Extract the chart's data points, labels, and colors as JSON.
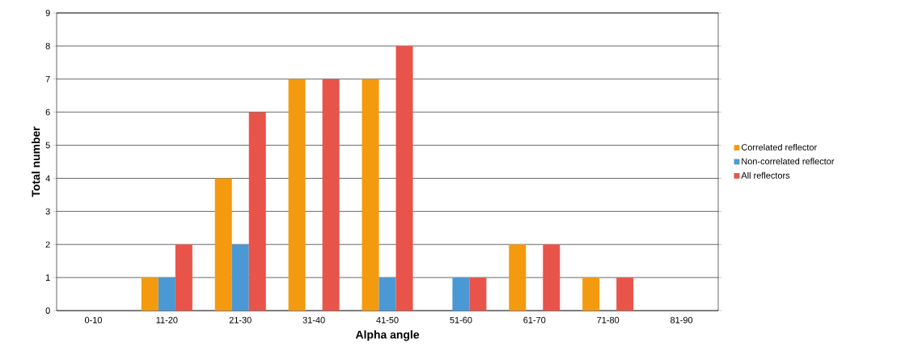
{
  "chart_data": {
    "type": "bar",
    "xlabel": "Alpha angle",
    "ylabel": "Total number",
    "categories": [
      "0-10",
      "11-20",
      "21-30",
      "31-40",
      "41-50",
      "51-60",
      "61-70",
      "71-80",
      "81-90"
    ],
    "series": [
      {
        "name": "Correlated reflector",
        "color": "#f39a0e",
        "values": [
          0,
          1,
          4,
          7,
          7,
          0,
          2,
          1,
          0
        ]
      },
      {
        "name": "Non-correlated reflector",
        "color": "#4a98d4",
        "values": [
          0,
          1,
          2,
          0,
          1,
          1,
          0,
          0,
          0
        ]
      },
      {
        "name": "All reflectors",
        "color": "#e8534a",
        "values": [
          0,
          2,
          6,
          7,
          8,
          1,
          2,
          1,
          0
        ]
      }
    ],
    "ylim": [
      0,
      9
    ],
    "yticks": [
      0,
      1,
      2,
      3,
      4,
      5,
      6,
      7,
      8,
      9
    ],
    "grid": "y",
    "legend": "right"
  }
}
